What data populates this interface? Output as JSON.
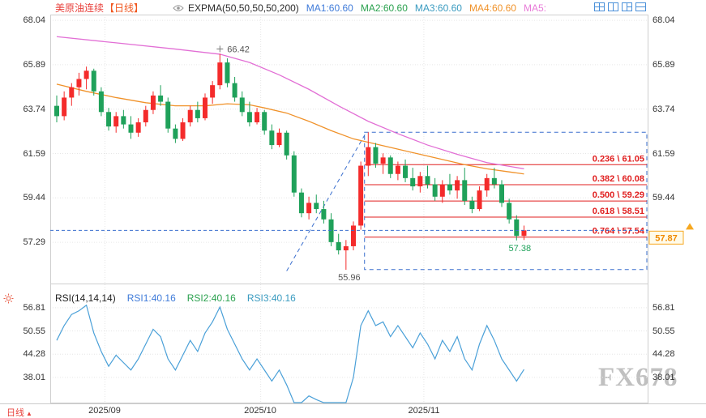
{
  "header": {
    "symbol": "美原油连续",
    "symbol_color": "#e8413c",
    "period": "【日线】",
    "period_color": "#f0561e",
    "indicator": "EXPMA(50,50,50,50,200)",
    "ma": [
      {
        "label": "MA1:60.60",
        "color": "#3f7bd9"
      },
      {
        "label": "MA2:60.60",
        "color": "#2aa14e"
      },
      {
        "label": "MA3:60.60",
        "color": "#3a9bc0"
      },
      {
        "label": "MA4:60.60",
        "color": "#f0922a"
      },
      {
        "label": "MA5:",
        "color": "#e87ad8"
      }
    ],
    "layout_icons": [
      "layout-quad-icon",
      "layout-two-column-icon",
      "layout-three-pane-icon",
      "layout-two-row-icon"
    ]
  },
  "rsi_header": {
    "name": "RSI(14,14,14)",
    "name_color": "#222222",
    "values": [
      {
        "label": "RSI1:40.16",
        "color": "#3f7bd9"
      },
      {
        "label": "RSI2:40.16",
        "color": "#2aa14e"
      },
      {
        "label": "RSI3:40.16",
        "color": "#3a9bc0"
      }
    ]
  },
  "footer": {
    "period": "日线",
    "arrow": "▲",
    "color": "#e8413c"
  },
  "watermark": "FX678",
  "chart_data": {
    "type": "candlestick",
    "symbol": "美原油连续",
    "interval": "日线",
    "price_panel": {
      "ymax": 68.32,
      "ymin": 55.45,
      "ticks": [
        68.04,
        65.89,
        63.74,
        61.59,
        59.44,
        57.29
      ]
    },
    "rsi_panel": {
      "ymax": 61.6,
      "ymin": 31.2,
      "ticks": [
        56.81,
        50.55,
        44.28,
        38.01
      ]
    },
    "months": [
      {
        "label": "2025/09",
        "slot": 6.5
      },
      {
        "label": "2025/10",
        "slot": 27.5
      },
      {
        "label": "2025/11",
        "slot": 49.5
      }
    ],
    "candles": [
      [
        63.9,
        64.4,
        63.1,
        63.4
      ],
      [
        63.4,
        64.6,
        63.2,
        64.3
      ],
      [
        64.3,
        65.0,
        63.9,
        64.8
      ],
      [
        64.8,
        65.5,
        64.4,
        65.2
      ],
      [
        65.2,
        65.8,
        64.7,
        65.6
      ],
      [
        65.6,
        65.7,
        64.4,
        64.6
      ],
      [
        64.6,
        64.8,
        63.4,
        63.6
      ],
      [
        63.6,
        63.8,
        62.7,
        62.9
      ],
      [
        62.9,
        63.6,
        62.6,
        63.4
      ],
      [
        63.4,
        63.7,
        62.8,
        63.0
      ],
      [
        63.0,
        63.4,
        62.3,
        62.6
      ],
      [
        62.6,
        63.3,
        62.4,
        63.1
      ],
      [
        63.1,
        63.9,
        62.9,
        63.7
      ],
      [
        63.7,
        64.6,
        63.5,
        64.4
      ],
      [
        64.4,
        64.9,
        63.9,
        64.1
      ],
      [
        64.1,
        64.3,
        62.6,
        62.8
      ],
      [
        62.8,
        63.0,
        62.1,
        62.3
      ],
      [
        62.3,
        63.3,
        62.2,
        63.1
      ],
      [
        63.1,
        63.9,
        62.9,
        63.7
      ],
      [
        63.7,
        64.1,
        63.1,
        63.3
      ],
      [
        63.3,
        64.5,
        63.2,
        64.3
      ],
      [
        64.3,
        65.1,
        64.0,
        64.9
      ],
      [
        64.9,
        66.42,
        64.7,
        66.0
      ],
      [
        66.0,
        66.2,
        64.8,
        65.0
      ],
      [
        65.0,
        65.3,
        64.1,
        64.3
      ],
      [
        64.3,
        64.6,
        63.4,
        63.6
      ],
      [
        63.6,
        64.1,
        62.9,
        63.1
      ],
      [
        63.1,
        63.8,
        63.0,
        63.6
      ],
      [
        63.6,
        63.7,
        62.5,
        62.7
      ],
      [
        62.7,
        63.0,
        61.8,
        62.0
      ],
      [
        62.0,
        62.8,
        61.9,
        62.6
      ],
      [
        62.6,
        62.7,
        61.3,
        61.5
      ],
      [
        61.5,
        61.7,
        59.5,
        59.7
      ],
      [
        59.7,
        59.9,
        58.5,
        58.7
      ],
      [
        58.7,
        59.5,
        58.4,
        59.2
      ],
      [
        59.2,
        59.6,
        58.7,
        58.9
      ],
      [
        58.9,
        59.3,
        58.2,
        58.4
      ],
      [
        58.4,
        58.7,
        57.1,
        57.3
      ],
      [
        57.3,
        57.7,
        56.7,
        56.9
      ],
      [
        56.9,
        57.4,
        55.96,
        57.1
      ],
      [
        57.1,
        58.3,
        56.9,
        58.1
      ],
      [
        58.1,
        61.2,
        57.9,
        61.0
      ],
      [
        61.0,
        62.62,
        60.5,
        61.9
      ],
      [
        61.9,
        62.1,
        60.9,
        61.1
      ],
      [
        61.1,
        61.6,
        60.6,
        61.4
      ],
      [
        61.4,
        61.5,
        60.4,
        60.6
      ],
      [
        60.6,
        61.2,
        60.3,
        61.0
      ],
      [
        61.0,
        61.3,
        60.2,
        60.4
      ],
      [
        60.4,
        60.9,
        59.8,
        60.0
      ],
      [
        60.0,
        60.7,
        59.7,
        60.5
      ],
      [
        60.5,
        61.0,
        59.9,
        60.1
      ],
      [
        60.1,
        60.4,
        59.3,
        59.5
      ],
      [
        59.5,
        60.3,
        59.2,
        60.1
      ],
      [
        60.1,
        60.6,
        59.6,
        59.8
      ],
      [
        59.8,
        60.5,
        59.4,
        60.3
      ],
      [
        60.3,
        60.9,
        59.1,
        59.3
      ],
      [
        59.3,
        59.5,
        58.7,
        58.9
      ],
      [
        58.9,
        60.0,
        58.8,
        59.8
      ],
      [
        59.8,
        60.6,
        59.5,
        60.4
      ],
      [
        60.4,
        60.9,
        59.9,
        60.1
      ],
      [
        60.1,
        60.3,
        59.0,
        59.2
      ],
      [
        59.2,
        59.4,
        58.2,
        58.4
      ],
      [
        58.4,
        58.6,
        57.38,
        57.6
      ],
      [
        57.6,
        58.1,
        57.4,
        57.87
      ]
    ],
    "ma200": [
      [
        0,
        67.25
      ],
      [
        8,
        66.95
      ],
      [
        16,
        66.65
      ],
      [
        22,
        66.4
      ],
      [
        26,
        66.0
      ],
      [
        30,
        65.4
      ],
      [
        34,
        64.7
      ],
      [
        38,
        63.9
      ],
      [
        42,
        63.15
      ],
      [
        46,
        62.55
      ],
      [
        50,
        62.0
      ],
      [
        54,
        61.55
      ],
      [
        58,
        61.15
      ],
      [
        63,
        60.85
      ]
    ],
    "ma50": [
      [
        0,
        64.95
      ],
      [
        4,
        64.6
      ],
      [
        8,
        64.3
      ],
      [
        12,
        64.05
      ],
      [
        16,
        63.9
      ],
      [
        20,
        63.9
      ],
      [
        23,
        64.0
      ],
      [
        26,
        63.95
      ],
      [
        28,
        63.8
      ],
      [
        31,
        63.55
      ],
      [
        34,
        63.15
      ],
      [
        37,
        62.7
      ],
      [
        40,
        62.3
      ],
      [
        43,
        62.05
      ],
      [
        46,
        61.8
      ],
      [
        49,
        61.55
      ],
      [
        52,
        61.3
      ],
      [
        55,
        61.05
      ],
      [
        58,
        60.85
      ],
      [
        61,
        60.7
      ],
      [
        63,
        60.6
      ]
    ],
    "rsi": [
      48,
      52,
      55,
      56,
      57.5,
      50,
      45,
      41,
      44,
      42,
      40,
      43,
      47,
      51,
      49,
      43,
      40,
      44,
      48,
      45,
      50,
      53,
      57,
      51,
      47,
      43,
      40,
      43,
      40,
      37,
      40,
      36,
      30,
      28,
      33,
      32,
      30,
      27,
      26,
      31,
      38,
      52,
      56,
      52,
      53,
      49,
      52,
      49,
      46,
      50,
      47,
      43,
      48,
      45,
      49,
      43,
      40,
      47,
      52,
      48,
      43,
      40,
      37,
      40.16
    ],
    "fib_levels": [
      {
        "label": "0.236 \\ 61.05",
        "value": 61.05
      },
      {
        "label": "0.382 \\ 60.08",
        "value": 60.08
      },
      {
        "label": "0.500 \\ 59.29",
        "value": 59.29
      },
      {
        "label": "0.618 \\ 58.51",
        "value": 58.51
      },
      {
        "label": "0.764 \\ 57.54",
        "value": 57.54
      }
    ],
    "fib_box": {
      "top": 62.62,
      "bottom": 55.97,
      "from_slot": 41.5
    },
    "trendline": {
      "from": [
        31,
        55.9
      ],
      "to": [
        41.7,
        62.6
      ]
    },
    "current_price": {
      "value": 57.87,
      "label": "57.87"
    },
    "annotations": [
      {
        "label": "66.42",
        "slot": 22,
        "price": 66.42,
        "type": "peak",
        "color": "#555555"
      },
      {
        "label": "55.96",
        "slot": 39,
        "price": 55.96,
        "type": "low",
        "color": "#555555"
      },
      {
        "label": "57.38",
        "slot": 62,
        "price": 57.38,
        "type": "recent-low",
        "color": "#1fa15a"
      }
    ],
    "colors": {
      "up": "#f42b2b",
      "down": "#1fa15a",
      "ma50": "#f0922a",
      "ma200": "#e26fd5",
      "rsi_line": "#4aa0d8",
      "fib": "#e01f1f",
      "dashed": "#3a6fce",
      "grid": "#e6e6e6",
      "frame": "#cfcfcf",
      "tag_border": "#f6a821",
      "tag_text": "#ef8a00"
    }
  }
}
